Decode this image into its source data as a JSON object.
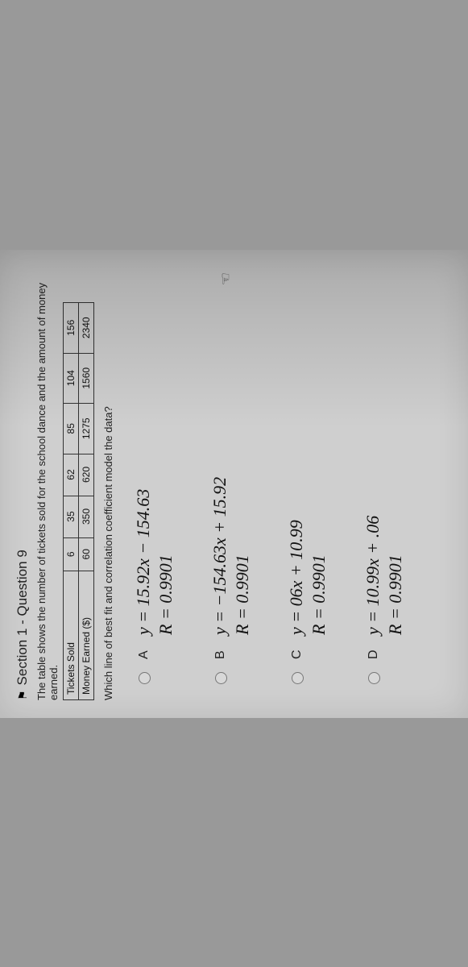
{
  "header": {
    "flag_icon": "⚑",
    "title": "Section 1 - Question 9"
  },
  "prompt": "The table shows the number of tickets sold for the school dance and the amount of money earned.",
  "table": {
    "row_labels": [
      "Tickets Sold",
      "Money Earned ($)"
    ],
    "cols": [
      {
        "tickets": "6",
        "money": "60"
      },
      {
        "tickets": "35",
        "money": "350"
      },
      {
        "tickets": "62",
        "money": "620"
      },
      {
        "tickets": "85",
        "money": "1275"
      },
      {
        "tickets": "104",
        "money": "1560"
      },
      {
        "tickets": "156",
        "money": "2340"
      }
    ]
  },
  "question": "Which line of best fit and correlation coefficient model the data?",
  "options": [
    {
      "letter": "A",
      "line1": "y = 15.92x − 154.63",
      "line2": "R = 0.9901"
    },
    {
      "letter": "B",
      "line1": "y = −154.63x + 15.92",
      "line2": "R = 0.9901"
    },
    {
      "letter": "C",
      "line1": "y = 06x + 10.99",
      "line2": "R = 0.9901"
    },
    {
      "letter": "D",
      "line1": "y = 10.99x + .06",
      "line2": "R = 0.9901"
    }
  ],
  "cursor_icon": "☜",
  "colors": {
    "page_bg": "#cfcfcf",
    "text": "#222",
    "border": "#333"
  }
}
